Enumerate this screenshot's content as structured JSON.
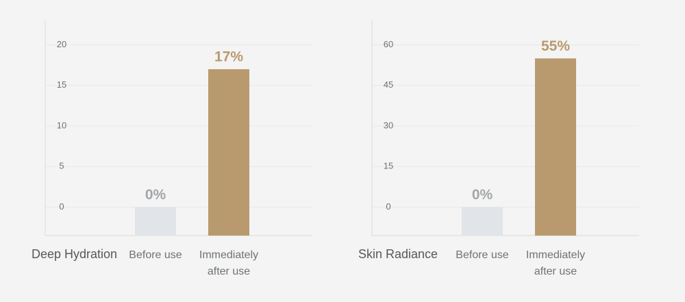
{
  "chart_data": [
    {
      "type": "bar",
      "title": "Deep Hydration",
      "categories": [
        "Before use",
        "Immediately after use"
      ],
      "values": [
        0,
        17
      ],
      "value_labels": [
        "0%",
        "17%"
      ],
      "colors": [
        "#e1e4e8",
        "#b99a6e"
      ],
      "value_label_colors": [
        "#a3a6a9",
        "#b99a6e"
      ],
      "ylim": [
        -3.5,
        23
      ],
      "yticks": [
        0,
        5,
        10,
        15,
        20
      ],
      "grid": true
    },
    {
      "type": "bar",
      "title": "Skin Radiance",
      "categories": [
        "Before use",
        "Immediately after use"
      ],
      "values": [
        0,
        55
      ],
      "value_labels": [
        "0%",
        "55%"
      ],
      "colors": [
        "#e1e4e8",
        "#b99a6e"
      ],
      "value_label_colors": [
        "#a3a6a9",
        "#b99a6e"
      ],
      "ylim": [
        -10.5,
        69
      ],
      "yticks": [
        0,
        15,
        30,
        45,
        60
      ],
      "grid": true
    }
  ]
}
